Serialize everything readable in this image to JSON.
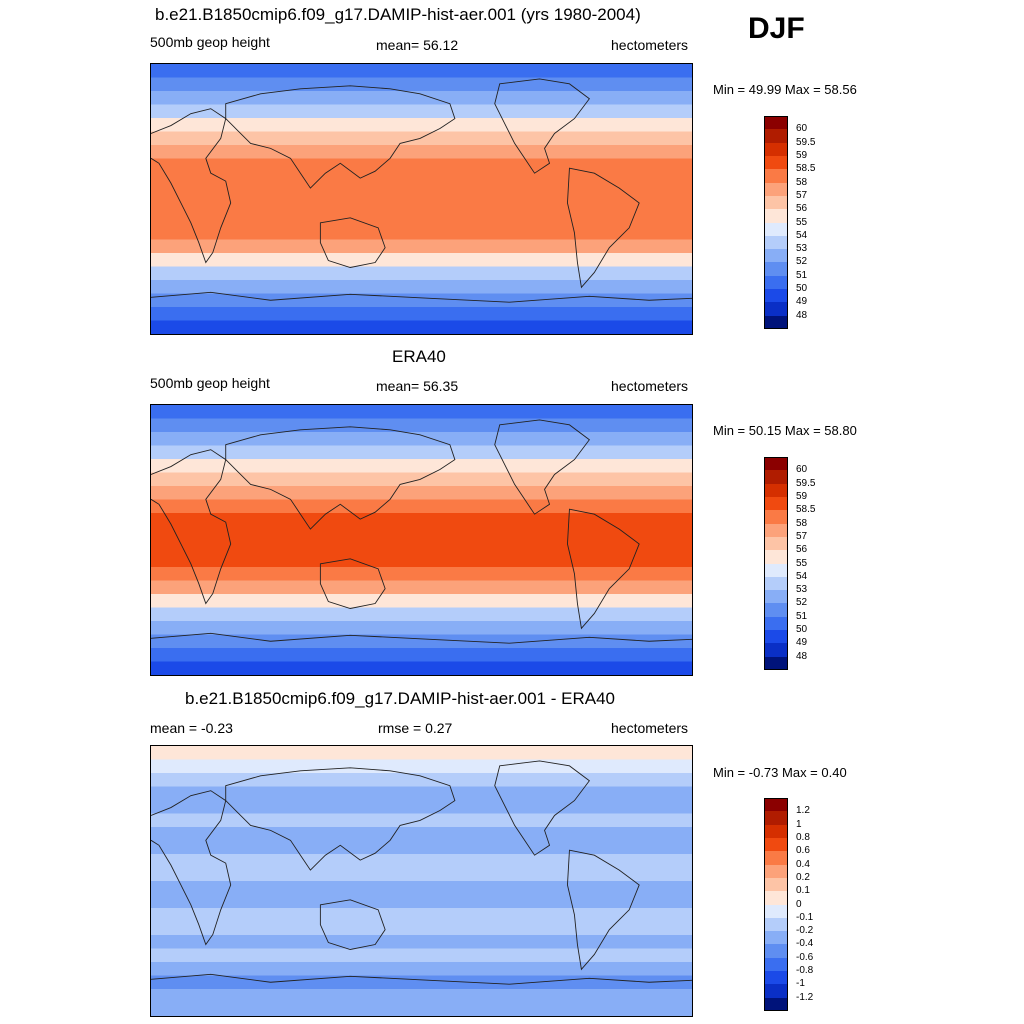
{
  "season": "DJF",
  "panels": [
    {
      "title": "b.e21.B1850cmip6.f09_g17.DAMIP-hist-aer.001 (yrs 1980-2004)",
      "left": "500mb geop height",
      "center": "mean=  56.12",
      "right": "hectometers",
      "minmax": "Min =  49.99 Max =  58.56",
      "legend_labels": [
        "60",
        "59.5",
        "59",
        "58.5",
        "58",
        "57",
        "56",
        "55",
        "54",
        "53",
        "52",
        "51",
        "50",
        "49",
        "48"
      ],
      "legend_colors": [
        "#8b0000",
        "#b01c00",
        "#d52f00",
        "#f04a10",
        "#fa7a45",
        "#fca27a",
        "#fdc4a6",
        "#fee6d8",
        "#dfeafd",
        "#b4cdfa",
        "#88aef6",
        "#5f8ef1",
        "#3a6ef0",
        "#1b4ae8",
        "#0a2fc6",
        "#00137a"
      ],
      "zonal_colors": [
        "#3a6ef0",
        "#5f8ef1",
        "#88aef6",
        "#b4cdfa",
        "#fee6d8",
        "#fdc4a6",
        "#fca27a",
        "#fa7a45",
        "#fa7a45",
        "#fa7a45",
        "#fa7a45",
        "#fa7a45",
        "#fa7a45",
        "#fca27a",
        "#fee6d8",
        "#b4cdfa",
        "#88aef6",
        "#5f8ef1",
        "#3a6ef0",
        "#1b4ae8"
      ]
    },
    {
      "title": "ERA40",
      "left": "500mb geop height",
      "center": "mean=  56.35",
      "right": "hectometers",
      "minmax": "Min =  50.15 Max =  58.80",
      "legend_labels": [
        "60",
        "59.5",
        "59",
        "58.5",
        "58",
        "57",
        "56",
        "55",
        "54",
        "53",
        "52",
        "51",
        "50",
        "49",
        "48"
      ],
      "legend_colors": [
        "#8b0000",
        "#b01c00",
        "#d52f00",
        "#f04a10",
        "#fa7a45",
        "#fca27a",
        "#fdc4a6",
        "#fee6d8",
        "#dfeafd",
        "#b4cdfa",
        "#88aef6",
        "#5f8ef1",
        "#3a6ef0",
        "#1b4ae8",
        "#0a2fc6",
        "#00137a"
      ],
      "zonal_colors": [
        "#3a6ef0",
        "#5f8ef1",
        "#88aef6",
        "#b4cdfa",
        "#fee6d8",
        "#fdc4a6",
        "#fca27a",
        "#fa7a45",
        "#f04a10",
        "#f04a10",
        "#f04a10",
        "#f04a10",
        "#fa7a45",
        "#fca27a",
        "#fee6d8",
        "#b4cdfa",
        "#88aef6",
        "#5f8ef1",
        "#3a6ef0",
        "#1b4ae8"
      ]
    },
    {
      "title": "b.e21.B1850cmip6.f09_g17.DAMIP-hist-aer.001 - ERA40",
      "left": "mean =  -0.23",
      "center": "rmse =   0.27",
      "right": "hectometers",
      "minmax": "Min =  -0.73 Max =   0.40",
      "legend_labels": [
        "1.2",
        "1",
        "0.8",
        "0.6",
        "0.4",
        "0.2",
        "0.1",
        "0",
        "-0.1",
        "-0.2",
        "-0.4",
        "-0.6",
        "-0.8",
        "-1",
        "-1.2"
      ],
      "legend_colors": [
        "#8b0000",
        "#b01c00",
        "#d52f00",
        "#f04a10",
        "#fa7a45",
        "#fca27a",
        "#fdc4a6",
        "#fee6d8",
        "#dfeafd",
        "#b4cdfa",
        "#88aef6",
        "#5f8ef1",
        "#3a6ef0",
        "#1b4ae8",
        "#0a2fc6",
        "#00137a"
      ],
      "zonal_colors": [
        "#fee6d8",
        "#dfeafd",
        "#b4cdfa",
        "#88aef6",
        "#88aef6",
        "#b4cdfa",
        "#88aef6",
        "#88aef6",
        "#b4cdfa",
        "#b4cdfa",
        "#88aef6",
        "#88aef6",
        "#b4cdfa",
        "#b4cdfa",
        "#88aef6",
        "#b4cdfa",
        "#88aef6",
        "#5f8ef1",
        "#88aef6",
        "#88aef6"
      ]
    }
  ]
}
